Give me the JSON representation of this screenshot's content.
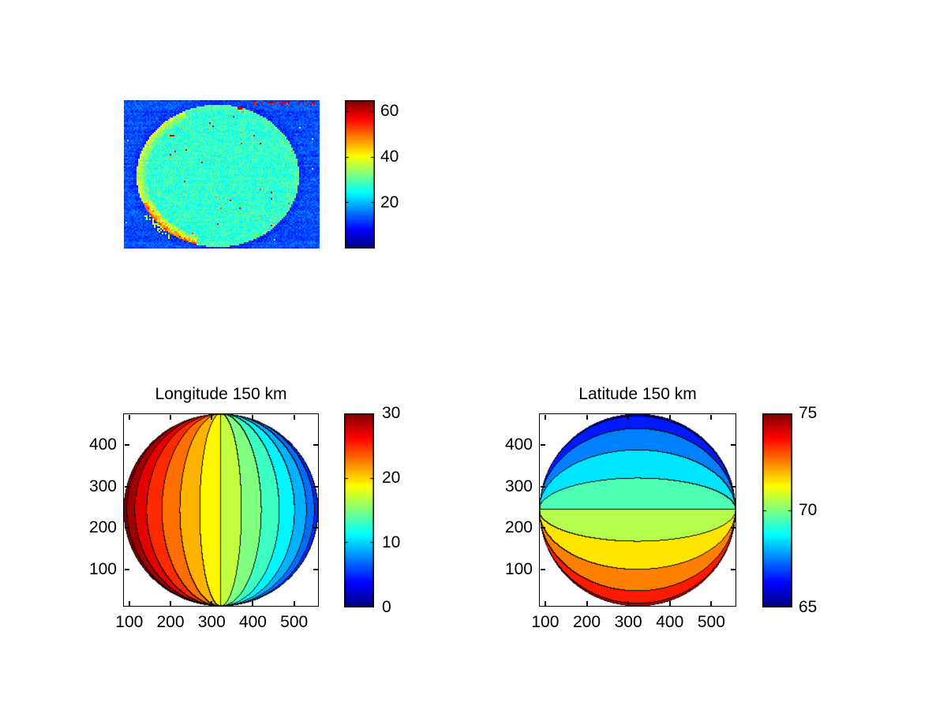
{
  "figure": {
    "background_color": "#ffffff",
    "colormap": "jet",
    "text_color": "#000000"
  },
  "panels": {
    "camera": {
      "colorbar_tick_labels": [
        "20",
        "40",
        "60"
      ]
    },
    "longitude": {
      "title": "Longitude 150 km",
      "x_tick_labels": [
        "100",
        "200",
        "300",
        "400",
        "500"
      ],
      "y_tick_labels": [
        "100",
        "200",
        "300",
        "400"
      ],
      "colorbar_tick_labels": [
        "0",
        "10",
        "20",
        "30"
      ]
    },
    "latitude": {
      "title": "Latitude 150 km",
      "x_tick_labels": [
        "100",
        "200",
        "300",
        "400",
        "500"
      ],
      "y_tick_labels": [
        "100",
        "200",
        "300",
        "400"
      ],
      "colorbar_tick_labels": [
        "65",
        "70",
        "75"
      ]
    }
  },
  "chart_data": [
    {
      "type": "heatmap",
      "panel": "camera_image",
      "title": "",
      "colormap": "jet",
      "clim": [
        0,
        65
      ],
      "colorbar_ticks": [
        20,
        40,
        60
      ],
      "axes": "hidden",
      "background_mean": 13,
      "disk_mean": 27.5,
      "disk_center_frac": [
        0.476,
        0.505
      ],
      "disk_radius_frac": [
        0.415,
        0.479
      ],
      "artifacts": [
        "noisy blue background with horizontal scanline streaks",
        "green-cyan planetary disk filling most of frame",
        "yellow limb brightening on upper-left edge",
        "strong orange-red limb arc on lower-left edge",
        "scattered dark-red hot pixels on disk",
        "small burned-in red marks along top-right edge",
        "detached yellow sliver just outside lower-left limb"
      ]
    },
    {
      "type": "filled_contour",
      "panel": "longitude_map",
      "title": "Longitude 150 km",
      "xlabel": "",
      "ylabel": "",
      "xlim": [
        85,
        560
      ],
      "ylim": [
        11,
        476
      ],
      "x_ticks": [
        100,
        200,
        300,
        400,
        500
      ],
      "y_ticks": [
        100,
        200,
        300,
        400
      ],
      "clim": [
        0,
        30
      ],
      "colorbar_ticks": [
        0,
        10,
        20,
        30
      ],
      "colormap": "jet",
      "contour_step": 2,
      "center_value": 18,
      "limb_amplitude": 14.6,
      "band_orientation": "meridional",
      "value_at_left_limb": 32.6,
      "value_at_disk_center": 18,
      "value_at_right_limb": 3.4,
      "disk_center_data": [
        322.5,
        243.5
      ],
      "disk_radius_data": [
        237.5,
        232.5
      ],
      "grid": false,
      "legend": "colorbar-right"
    },
    {
      "type": "filled_contour",
      "panel": "latitude_map",
      "title": "Latitude 150 km",
      "xlabel": "",
      "ylabel": "",
      "xlim": [
        85,
        560
      ],
      "ylim": [
        11,
        476
      ],
      "x_ticks": [
        100,
        200,
        300,
        400,
        500
      ],
      "y_ticks": [
        100,
        200,
        300,
        400
      ],
      "clim": [
        65,
        75
      ],
      "colorbar_ticks": [
        65,
        70,
        75
      ],
      "colormap": "jet",
      "contour_step": 1,
      "center_value": 70,
      "limb_amplitude": 4.7,
      "band_orientation": "zonal",
      "value_at_top_limb": 65.3,
      "value_at_disk_center": 70,
      "value_at_bottom_limb": 74.7,
      "disk_center_data": [
        322.5,
        243.5
      ],
      "disk_radius_data": [
        237.5,
        232.5
      ],
      "grid": false,
      "legend": "colorbar-right"
    }
  ]
}
